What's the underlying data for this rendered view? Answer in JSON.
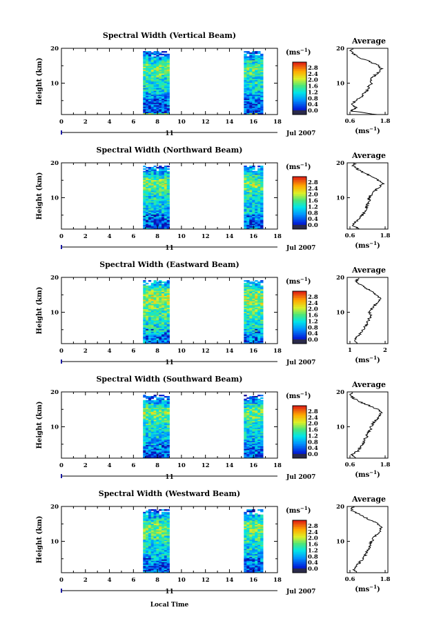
{
  "figure": {
    "xaxis_label": "Local Time",
    "date_label": "Jul 2007",
    "day_label": "11",
    "colorbar_unit_base": "(ms",
    "colorbar_unit_exp": "−1",
    "colorbar_unit_close": ")",
    "avg_title": "Average"
  },
  "chart_data": [
    {
      "type": "heatmap",
      "title": "Spectral Width (Vertical Beam)",
      "ylabel": "Height (km)",
      "xlim": [
        0,
        18
      ],
      "ylim": [
        1,
        20
      ],
      "xticks": [
        "0",
        "2",
        "4",
        "6",
        "8",
        "10",
        "12",
        "14",
        "16",
        "18"
      ],
      "yticks": [
        "10",
        "20"
      ],
      "data_windows_hours": [
        [
          6.8,
          9.0
        ],
        [
          15.2,
          16.8
        ]
      ],
      "colorbar": {
        "ticks": [
          "0.0",
          "0.4",
          "0.8",
          "1.2",
          "1.6",
          "2.0",
          "2.4",
          "2.8"
        ],
        "range": [
          0,
          3.0
        ]
      },
      "average": {
        "xticks": [
          "0.6",
          "1.8"
        ],
        "xlim": [
          0.4,
          2.0
        ],
        "profile": [
          [
            1.6,
            1
          ],
          [
            0.55,
            2
          ],
          [
            0.75,
            3
          ],
          [
            0.6,
            4
          ],
          [
            0.7,
            5
          ],
          [
            0.95,
            6
          ],
          [
            1.05,
            7
          ],
          [
            1.2,
            8
          ],
          [
            1.25,
            9
          ],
          [
            1.35,
            10
          ],
          [
            1.3,
            11
          ],
          [
            1.45,
            12
          ],
          [
            1.6,
            13
          ],
          [
            1.75,
            14
          ],
          [
            1.65,
            15
          ],
          [
            1.35,
            16
          ],
          [
            1.0,
            17
          ],
          [
            0.75,
            18
          ],
          [
            0.55,
            19
          ],
          [
            0.6,
            20
          ]
        ]
      }
    },
    {
      "type": "heatmap",
      "title": "Spectral Width (Northward Beam)",
      "ylabel": "Height (km)",
      "xlim": [
        0,
        18
      ],
      "ylim": [
        1,
        20
      ],
      "xticks": [
        "0",
        "2",
        "4",
        "6",
        "8",
        "10",
        "12",
        "14",
        "16",
        "18"
      ],
      "yticks": [
        "10",
        "20"
      ],
      "data_windows_hours": [
        [
          6.8,
          9.0
        ],
        [
          15.2,
          16.8
        ]
      ],
      "colorbar": {
        "ticks": [
          "0.0",
          "0.4",
          "0.8",
          "1.2",
          "1.6",
          "2.0",
          "2.4",
          "2.8"
        ],
        "range": [
          0,
          3.0
        ]
      },
      "average": {
        "xticks": [
          "0.6",
          "1.8"
        ],
        "xlim": [
          0.4,
          2.0
        ],
        "profile": [
          [
            0.9,
            1
          ],
          [
            0.6,
            2
          ],
          [
            0.7,
            3
          ],
          [
            0.9,
            4
          ],
          [
            1.0,
            5
          ],
          [
            1.1,
            6
          ],
          [
            1.15,
            7
          ],
          [
            1.2,
            8
          ],
          [
            1.3,
            9
          ],
          [
            1.25,
            10
          ],
          [
            1.35,
            11
          ],
          [
            1.5,
            12
          ],
          [
            1.65,
            13
          ],
          [
            1.8,
            14
          ],
          [
            1.6,
            15
          ],
          [
            1.4,
            16
          ],
          [
            1.1,
            17
          ],
          [
            0.85,
            18
          ],
          [
            0.65,
            19
          ],
          [
            0.7,
            20
          ]
        ]
      }
    },
    {
      "type": "heatmap",
      "title": "Spectral Width (Eastward Beam)",
      "ylabel": "Height (km)",
      "xlim": [
        0,
        18
      ],
      "ylim": [
        1,
        20
      ],
      "xticks": [
        "0",
        "2",
        "4",
        "6",
        "8",
        "10",
        "12",
        "14",
        "16",
        "18"
      ],
      "yticks": [
        "10",
        "20"
      ],
      "data_windows_hours": [
        [
          6.8,
          9.0
        ],
        [
          15.2,
          16.8
        ]
      ],
      "colorbar": {
        "ticks": [
          "0.0",
          "0.4",
          "0.8",
          "1.2",
          "1.6",
          "2.0",
          "2.4",
          "2.8"
        ],
        "range": [
          0,
          3.0
        ]
      },
      "average": {
        "xticks": [
          "1",
          "2"
        ],
        "xlim": [
          0.5,
          2.3
        ],
        "profile": [
          [
            0.9,
            1
          ],
          [
            0.8,
            2
          ],
          [
            0.95,
            3
          ],
          [
            1.1,
            4
          ],
          [
            1.2,
            5
          ],
          [
            1.3,
            6
          ],
          [
            1.4,
            7
          ],
          [
            1.45,
            8
          ],
          [
            1.55,
            9
          ],
          [
            1.5,
            10
          ],
          [
            1.6,
            11
          ],
          [
            1.7,
            12
          ],
          [
            1.85,
            13
          ],
          [
            1.95,
            14
          ],
          [
            1.8,
            15
          ],
          [
            1.6,
            16
          ],
          [
            1.3,
            17
          ],
          [
            1.05,
            18
          ],
          [
            0.9,
            19
          ],
          [
            1.0,
            20
          ]
        ]
      }
    },
    {
      "type": "heatmap",
      "title": "Spectral Width (Southward Beam)",
      "ylabel": "Height (km)",
      "xlim": [
        0,
        18
      ],
      "ylim": [
        1,
        20
      ],
      "xticks": [
        "0",
        "2",
        "4",
        "6",
        "8",
        "10",
        "12",
        "14",
        "16",
        "18"
      ],
      "yticks": [
        "10",
        "20"
      ],
      "data_windows_hours": [
        [
          6.8,
          9.0
        ],
        [
          15.2,
          16.8
        ]
      ],
      "colorbar": {
        "ticks": [
          "0.0",
          "0.4",
          "0.8",
          "1.2",
          "1.6",
          "2.0",
          "2.4",
          "2.8"
        ],
        "range": [
          0,
          3.0
        ]
      },
      "average": {
        "xticks": [
          "0.6",
          "1.8"
        ],
        "xlim": [
          0.4,
          2.0
        ],
        "profile": [
          [
            0.7,
            1
          ],
          [
            0.6,
            2
          ],
          [
            0.8,
            3
          ],
          [
            0.9,
            4
          ],
          [
            1.0,
            5
          ],
          [
            1.05,
            6
          ],
          [
            1.15,
            7
          ],
          [
            1.2,
            8
          ],
          [
            1.3,
            9
          ],
          [
            1.35,
            10
          ],
          [
            1.4,
            11
          ],
          [
            1.55,
            12
          ],
          [
            1.65,
            13
          ],
          [
            1.75,
            14
          ],
          [
            1.6,
            15
          ],
          [
            1.3,
            16
          ],
          [
            0.95,
            17
          ],
          [
            0.7,
            18
          ],
          [
            0.5,
            19
          ],
          [
            0.6,
            20
          ]
        ]
      }
    },
    {
      "type": "heatmap",
      "title": "Spectral Width (Westward Beam)",
      "ylabel": "Height (km)",
      "xlim": [
        0,
        18
      ],
      "ylim": [
        1,
        20
      ],
      "xticks": [
        "0",
        "2",
        "4",
        "6",
        "8",
        "10",
        "12",
        "14",
        "16",
        "18"
      ],
      "yticks": [
        "10",
        "20"
      ],
      "data_windows_hours": [
        [
          6.8,
          9.0
        ],
        [
          15.2,
          16.8
        ]
      ],
      "colorbar": {
        "ticks": [
          "0.0",
          "0.4",
          "0.8",
          "1.2",
          "1.6",
          "2.0",
          "2.4",
          "2.8"
        ],
        "range": [
          0,
          3.0
        ]
      },
      "average": {
        "xticks": [
          "0.6",
          "1.8"
        ],
        "xlim": [
          0.4,
          2.0
        ],
        "profile": [
          [
            0.8,
            1
          ],
          [
            0.65,
            2
          ],
          [
            0.75,
            3
          ],
          [
            0.9,
            4
          ],
          [
            1.0,
            5
          ],
          [
            1.1,
            6
          ],
          [
            1.15,
            7
          ],
          [
            1.25,
            8
          ],
          [
            1.3,
            9
          ],
          [
            1.35,
            10
          ],
          [
            1.45,
            11
          ],
          [
            1.55,
            12
          ],
          [
            1.7,
            13
          ],
          [
            1.75,
            14
          ],
          [
            1.6,
            15
          ],
          [
            1.35,
            16
          ],
          [
            1.05,
            17
          ],
          [
            0.8,
            18
          ],
          [
            0.55,
            19
          ],
          [
            0.65,
            20
          ]
        ]
      }
    }
  ]
}
